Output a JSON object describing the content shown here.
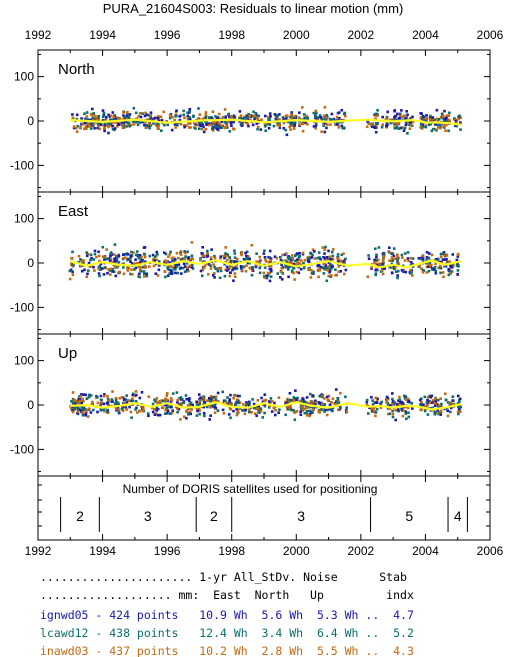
{
  "chart_data": {
    "type": "scatter",
    "title": "PURA_21604S003: Residuals to linear motion (mm)",
    "xlim": [
      1992,
      2006
    ],
    "x_ticks": [
      "1992",
      "1994",
      "1996",
      "1998",
      "2000",
      "2002",
      "2004",
      "2006"
    ],
    "colors": {
      "ignwd05": "#1a1aa8",
      "lcawd12": "#0e6e6e",
      "inawd03": "#c46a10",
      "smooth": "#ffff22",
      "frame": "#000000"
    },
    "panels": [
      {
        "label": "North",
        "ylim": [
          -160,
          160
        ],
        "y_ticks": [
          "100",
          "0",
          "-100"
        ],
        "data_spans": [
          [
            1993.0,
            2001.6
          ],
          [
            2002.2,
            2003.6
          ],
          [
            2003.8,
            2005.1
          ]
        ],
        "scatter_std": 28,
        "smooth_curve": {
          "x": [
            1993.0,
            1994.0,
            1995.0,
            1996.0,
            1997.0,
            1998.0,
            1999.0,
            2000.0,
            2001.0,
            2001.6,
            2002.2,
            2003.0,
            2003.6,
            2004.0,
            2004.6,
            2005.1
          ],
          "y": [
            2,
            -2,
            3,
            -4,
            1,
            3,
            -3,
            2,
            -2,
            1,
            3,
            -1,
            2,
            -3,
            -4,
            -8
          ]
        }
      },
      {
        "label": "East",
        "ylim": [
          -160,
          160
        ],
        "y_ticks": [
          "100",
          "0",
          "-100"
        ],
        "data_spans": [
          [
            1993.0,
            2001.6
          ],
          [
            2002.2,
            2003.6
          ],
          [
            2003.8,
            2005.1
          ]
        ],
        "scatter_std": 40,
        "smooth_curve": {
          "x": [
            1993.0,
            1993.5,
            1994.0,
            1994.5,
            1995.0,
            1995.5,
            1996.0,
            1996.5,
            1997.0,
            1997.5,
            1998.0,
            1998.5,
            1999.0,
            1999.5,
            2000.0,
            2000.5,
            2001.0,
            2001.6,
            2002.2,
            2002.6,
            2003.0,
            2003.4,
            2003.8,
            2004.2,
            2004.6,
            2005.1
          ],
          "y": [
            4,
            -6,
            2,
            -4,
            -6,
            2,
            -4,
            4,
            -2,
            6,
            -4,
            4,
            -6,
            2,
            -8,
            -2,
            4,
            -6,
            -2,
            -10,
            -4,
            -10,
            -2,
            6,
            -4,
            4
          ]
        }
      },
      {
        "label": "Up",
        "ylim": [
          -160,
          160
        ],
        "y_ticks": [
          "100",
          "0",
          "-100"
        ],
        "data_spans": [
          [
            1993.0,
            2001.6
          ],
          [
            2002.2,
            2003.6
          ],
          [
            2003.8,
            2005.1
          ]
        ],
        "scatter_std": 32,
        "smooth_curve": {
          "x": [
            1993.0,
            1993.5,
            1994.0,
            1994.5,
            1995.0,
            1995.5,
            1996.0,
            1996.5,
            1997.0,
            1997.5,
            1998.0,
            1998.5,
            1999.0,
            1999.5,
            2000.0,
            2000.5,
            2001.0,
            2001.6,
            2002.2,
            2002.6,
            2003.0,
            2003.4,
            2003.8,
            2004.2,
            2004.6,
            2005.1
          ],
          "y": [
            -2,
            0,
            -6,
            -2,
            4,
            -4,
            4,
            -6,
            -4,
            6,
            -4,
            -6,
            4,
            -4,
            6,
            -2,
            -6,
            4,
            -4,
            -2,
            -6,
            -2,
            -4,
            -10,
            -6,
            2
          ]
        }
      }
    ],
    "satellites": {
      "title": "Number of DORIS satellites used for positioning",
      "segments": [
        {
          "start": 1992.7,
          "end": 1993.9,
          "count": "2"
        },
        {
          "start": 1993.9,
          "end": 1996.9,
          "count": "3"
        },
        {
          "start": 1996.9,
          "end": 1998.0,
          "count": "2"
        },
        {
          "start": 1998.0,
          "end": 2002.3,
          "count": "3"
        },
        {
          "start": 2002.3,
          "end": 2004.7,
          "count": "5"
        },
        {
          "start": 2004.7,
          "end": 2005.3,
          "count": "4"
        }
      ]
    }
  },
  "stats_table": {
    "header1": "...................... 1-yr All_StDv. Noise      Stab",
    "header2": "................... mm:  East  North   Up         indx",
    "rows": [
      {
        "text": "ignwd05 - 424 points   10.9 Wh  5.6 Wh  5.3 Wh ..  4.7",
        "color": "#1a1aa8"
      },
      {
        "text": "lcawd12 - 438 points   12.4 Wh  3.4 Wh  6.4 Wh ..  5.2",
        "color": "#0e6e6e"
      },
      {
        "text": "inawd03 - 437 points   10.2 Wh  2.8 Wh  5.5 Wh ..  4.3",
        "color": "#c46a10"
      }
    ]
  }
}
